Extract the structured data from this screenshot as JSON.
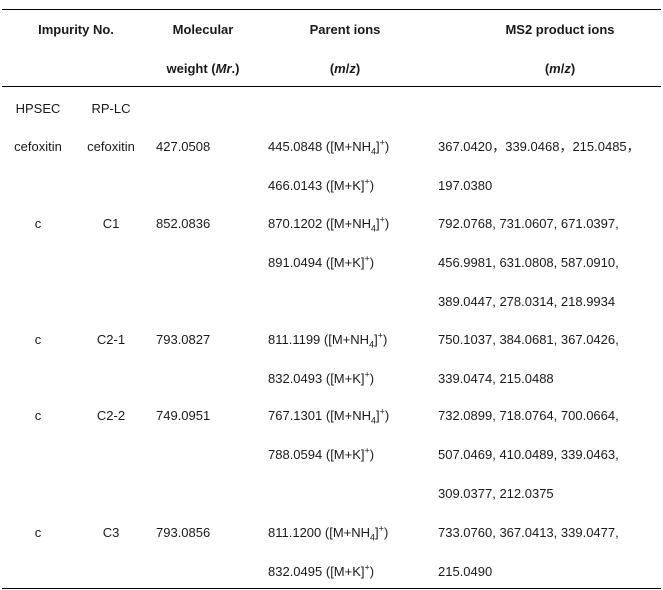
{
  "header": {
    "impurity_no": "Impurity No.",
    "mw_line1": "Molecular",
    "mw_line2_prefix": "weight (",
    "mw_line2_italic": "Mr",
    "mw_line2_suffix": ".)",
    "parent_line1": "Parent ions",
    "parent_line2_open": "(",
    "parent_line2_m": "m",
    "parent_line2_slash": "/",
    "parent_line2_z": "z",
    "parent_line2_close": ")",
    "ms2_line1": "MS2 product ions",
    "ms2_line2_open": "(",
    "ms2_line2_m": "m",
    "ms2_line2_slash": "/",
    "ms2_line2_z": "z",
    "ms2_line2_close": ")"
  },
  "subheader": {
    "hpsec": "HPSEC",
    "rplc": "RP-LC"
  },
  "adducts": {
    "nh4_open": "([M+NH",
    "nh4_sub": "4",
    "close_bracket": "]",
    "plus": "+",
    "close_paren": ")",
    "k": "([M+K]"
  },
  "rows": [
    {
      "hpsec": "cefoxitin",
      "rplc": "cefoxitin",
      "mw": "427.0508",
      "parent_nh4": "445.0848",
      "parent_k": "466.0143",
      "ms2": [
        "367.0420，339.0468，215.0485，",
        "197.0380"
      ]
    },
    {
      "hpsec": "c",
      "rplc": "C1",
      "mw": "852.0836",
      "parent_nh4": "870.1202",
      "parent_k": "891.0494",
      "ms2": [
        "792.0768, 731.0607, 671.0397,",
        "456.9981, 631.0808, 587.0910,",
        "389.0447, 278.0314, 218.9934"
      ]
    },
    {
      "hpsec": "c",
      "rplc": "C2-1",
      "mw": "793.0827",
      "parent_nh4": "811.1199",
      "parent_k": "832.0493",
      "ms2": [
        "750.1037, 384.0681, 367.0426,",
        "339.0474, 215.0488"
      ]
    },
    {
      "hpsec": "c",
      "rplc": "C2-2",
      "mw": "749.0951",
      "parent_nh4": "767.1301",
      "parent_k": "788.0594",
      "ms2": [
        "732.0899, 718.0764, 700.0664,",
        "507.0469, 410.0489, 339.0463,",
        "309.0377, 212.0375"
      ]
    },
    {
      "hpsec": "c",
      "rplc": "C3",
      "mw": "793.0856",
      "parent_nh4": "811.1200",
      "parent_k": "832.0495",
      "ms2": [
        "733.0760, 367.0413, 339.0477,",
        "215.0490"
      ]
    }
  ]
}
